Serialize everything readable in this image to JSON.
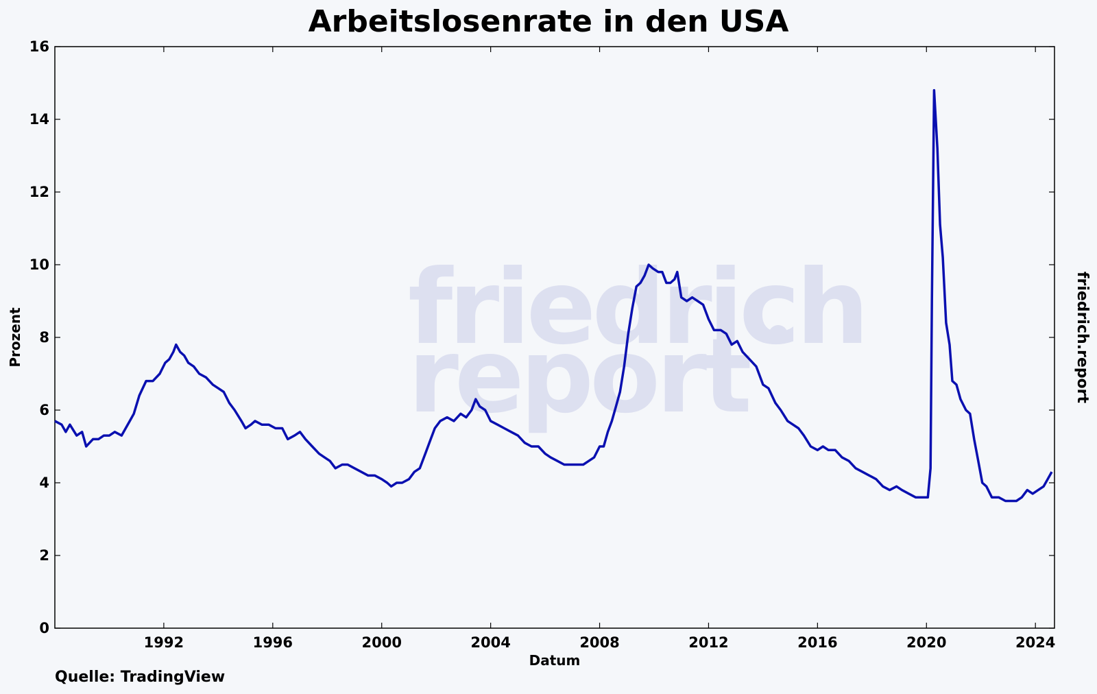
{
  "chart_data": {
    "type": "line",
    "title": "Arbeitslosenrate in den USA",
    "xlabel": "Datum",
    "ylabel": "Prozent",
    "source": "Quelle: TradingView",
    "brand": "friedrich.report",
    "watermark": [
      "friedrich",
      "report"
    ],
    "xlim": [
      1988.0,
      2024.7
    ],
    "ylim": [
      0,
      16
    ],
    "xticks": [
      1992,
      1996,
      2000,
      2004,
      2008,
      2012,
      2016,
      2020,
      2024
    ],
    "yticks": [
      0,
      2,
      4,
      6,
      8,
      10,
      12,
      14,
      16
    ],
    "grid": false,
    "series": [
      {
        "color": "#0a10b0",
        "points": [
          [
            1988.0,
            5.7
          ],
          [
            1988.25,
            5.6
          ],
          [
            1988.4,
            5.4
          ],
          [
            1988.55,
            5.6
          ],
          [
            1988.8,
            5.3
          ],
          [
            1989.0,
            5.4
          ],
          [
            1989.15,
            5.0
          ],
          [
            1989.4,
            5.2
          ],
          [
            1989.6,
            5.2
          ],
          [
            1989.8,
            5.3
          ],
          [
            1990.0,
            5.3
          ],
          [
            1990.2,
            5.4
          ],
          [
            1990.45,
            5.3
          ],
          [
            1990.6,
            5.5
          ],
          [
            1990.75,
            5.7
          ],
          [
            1990.9,
            5.9
          ],
          [
            1991.1,
            6.4
          ],
          [
            1991.35,
            6.8
          ],
          [
            1991.6,
            6.8
          ],
          [
            1991.85,
            7.0
          ],
          [
            1992.05,
            7.3
          ],
          [
            1992.2,
            7.4
          ],
          [
            1992.35,
            7.6
          ],
          [
            1992.45,
            7.8
          ],
          [
            1992.6,
            7.6
          ],
          [
            1992.75,
            7.5
          ],
          [
            1992.9,
            7.3
          ],
          [
            1993.1,
            7.2
          ],
          [
            1993.3,
            7.0
          ],
          [
            1993.55,
            6.9
          ],
          [
            1993.8,
            6.7
          ],
          [
            1994.0,
            6.6
          ],
          [
            1994.2,
            6.5
          ],
          [
            1994.4,
            6.2
          ],
          [
            1994.6,
            6.0
          ],
          [
            1994.85,
            5.7
          ],
          [
            1995.0,
            5.5
          ],
          [
            1995.2,
            5.6
          ],
          [
            1995.35,
            5.7
          ],
          [
            1995.6,
            5.6
          ],
          [
            1995.85,
            5.6
          ],
          [
            1996.1,
            5.5
          ],
          [
            1996.35,
            5.5
          ],
          [
            1996.55,
            5.2
          ],
          [
            1996.8,
            5.3
          ],
          [
            1997.0,
            5.4
          ],
          [
            1997.2,
            5.2
          ],
          [
            1997.45,
            5.0
          ],
          [
            1997.7,
            4.8
          ],
          [
            1997.9,
            4.7
          ],
          [
            1998.1,
            4.6
          ],
          [
            1998.3,
            4.4
          ],
          [
            1998.55,
            4.5
          ],
          [
            1998.75,
            4.5
          ],
          [
            1999.0,
            4.4
          ],
          [
            1999.25,
            4.3
          ],
          [
            1999.5,
            4.2
          ],
          [
            1999.75,
            4.2
          ],
          [
            2000.0,
            4.1
          ],
          [
            2000.2,
            4.0
          ],
          [
            2000.35,
            3.9
          ],
          [
            2000.55,
            4.0
          ],
          [
            2000.75,
            4.0
          ],
          [
            2001.0,
            4.1
          ],
          [
            2001.2,
            4.3
          ],
          [
            2001.4,
            4.4
          ],
          [
            2001.6,
            4.8
          ],
          [
            2001.8,
            5.2
          ],
          [
            2001.95,
            5.5
          ],
          [
            2002.15,
            5.7
          ],
          [
            2002.4,
            5.8
          ],
          [
            2002.65,
            5.7
          ],
          [
            2002.9,
            5.9
          ],
          [
            2003.1,
            5.8
          ],
          [
            2003.3,
            6.0
          ],
          [
            2003.45,
            6.3
          ],
          [
            2003.6,
            6.1
          ],
          [
            2003.8,
            6.0
          ],
          [
            2004.0,
            5.7
          ],
          [
            2004.25,
            5.6
          ],
          [
            2004.5,
            5.5
          ],
          [
            2004.75,
            5.4
          ],
          [
            2005.0,
            5.3
          ],
          [
            2005.25,
            5.1
          ],
          [
            2005.5,
            5.0
          ],
          [
            2005.75,
            5.0
          ],
          [
            2006.0,
            4.8
          ],
          [
            2006.2,
            4.7
          ],
          [
            2006.45,
            4.6
          ],
          [
            2006.7,
            4.5
          ],
          [
            2006.95,
            4.5
          ],
          [
            2007.15,
            4.5
          ],
          [
            2007.4,
            4.5
          ],
          [
            2007.6,
            4.6
          ],
          [
            2007.8,
            4.7
          ],
          [
            2008.0,
            5.0
          ],
          [
            2008.15,
            5.0
          ],
          [
            2008.3,
            5.4
          ],
          [
            2008.45,
            5.7
          ],
          [
            2008.6,
            6.1
          ],
          [
            2008.75,
            6.5
          ],
          [
            2008.9,
            7.2
          ],
          [
            2009.05,
            8.1
          ],
          [
            2009.2,
            8.8
          ],
          [
            2009.35,
            9.4
          ],
          [
            2009.5,
            9.5
          ],
          [
            2009.65,
            9.7
          ],
          [
            2009.8,
            10.0
          ],
          [
            2009.95,
            9.9
          ],
          [
            2010.15,
            9.8
          ],
          [
            2010.3,
            9.8
          ],
          [
            2010.45,
            9.5
          ],
          [
            2010.6,
            9.5
          ],
          [
            2010.75,
            9.6
          ],
          [
            2010.85,
            9.8
          ],
          [
            2011.0,
            9.1
          ],
          [
            2011.2,
            9.0
          ],
          [
            2011.4,
            9.1
          ],
          [
            2011.6,
            9.0
          ],
          [
            2011.8,
            8.9
          ],
          [
            2012.0,
            8.5
          ],
          [
            2012.2,
            8.2
          ],
          [
            2012.45,
            8.2
          ],
          [
            2012.65,
            8.1
          ],
          [
            2012.85,
            7.8
          ],
          [
            2013.05,
            7.9
          ],
          [
            2013.25,
            7.6
          ],
          [
            2013.5,
            7.4
          ],
          [
            2013.75,
            7.2
          ],
          [
            2014.0,
            6.7
          ],
          [
            2014.2,
            6.6
          ],
          [
            2014.45,
            6.2
          ],
          [
            2014.65,
            6.0
          ],
          [
            2014.9,
            5.7
          ],
          [
            2015.1,
            5.6
          ],
          [
            2015.3,
            5.5
          ],
          [
            2015.5,
            5.3
          ],
          [
            2015.75,
            5.0
          ],
          [
            2016.0,
            4.9
          ],
          [
            2016.2,
            5.0
          ],
          [
            2016.4,
            4.9
          ],
          [
            2016.65,
            4.9
          ],
          [
            2016.9,
            4.7
          ],
          [
            2017.15,
            4.6
          ],
          [
            2017.4,
            4.4
          ],
          [
            2017.65,
            4.3
          ],
          [
            2017.9,
            4.2
          ],
          [
            2018.15,
            4.1
          ],
          [
            2018.4,
            3.9
          ],
          [
            2018.65,
            3.8
          ],
          [
            2018.9,
            3.9
          ],
          [
            2019.1,
            3.8
          ],
          [
            2019.35,
            3.7
          ],
          [
            2019.6,
            3.6
          ],
          [
            2019.85,
            3.6
          ],
          [
            2020.05,
            3.6
          ],
          [
            2020.15,
            4.4
          ],
          [
            2020.2,
            9.0
          ],
          [
            2020.28,
            14.8
          ],
          [
            2020.4,
            13.2
          ],
          [
            2020.5,
            11.1
          ],
          [
            2020.6,
            10.2
          ],
          [
            2020.72,
            8.4
          ],
          [
            2020.85,
            7.8
          ],
          [
            2020.95,
            6.8
          ],
          [
            2021.1,
            6.7
          ],
          [
            2021.25,
            6.3
          ],
          [
            2021.45,
            6.0
          ],
          [
            2021.6,
            5.9
          ],
          [
            2021.75,
            5.2
          ],
          [
            2021.9,
            4.6
          ],
          [
            2022.05,
            4.0
          ],
          [
            2022.2,
            3.9
          ],
          [
            2022.4,
            3.6
          ],
          [
            2022.65,
            3.6
          ],
          [
            2022.9,
            3.5
          ],
          [
            2023.1,
            3.5
          ],
          [
            2023.3,
            3.5
          ],
          [
            2023.5,
            3.6
          ],
          [
            2023.7,
            3.8
          ],
          [
            2023.9,
            3.7
          ],
          [
            2024.1,
            3.8
          ],
          [
            2024.3,
            3.9
          ],
          [
            2024.45,
            4.1
          ],
          [
            2024.6,
            4.3
          ]
        ]
      }
    ]
  }
}
